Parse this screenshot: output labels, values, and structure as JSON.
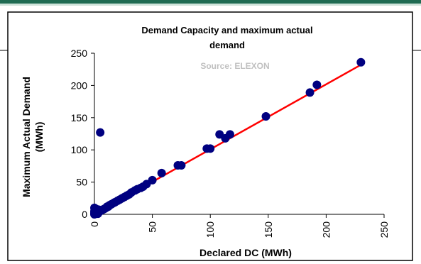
{
  "chart_data": {
    "type": "scatter",
    "title": "Demand Capacity and maximum actual demand",
    "title_lines": [
      "Demand Capacity and maximum actual",
      "demand"
    ],
    "annotation": "Source: ELEXON",
    "xlabel": "Declared DC (MWh)",
    "ylabel": "Maximum Actual Demand (MWh)",
    "ylabel_lines": [
      "Maximum Actual Demand",
      "(MWh)"
    ],
    "xlim": [
      0,
      250
    ],
    "ylim": [
      0,
      250
    ],
    "x_ticks": [
      0,
      50,
      100,
      150,
      200,
      250
    ],
    "y_ticks": [
      0,
      50,
      100,
      150,
      200,
      250
    ],
    "grid": false,
    "legend": "none",
    "colors": {
      "points": "#000080",
      "trendline": "#ff0000",
      "annotation": "#c0c0c0",
      "frame": "#000000",
      "top_band": "#1f6b52"
    },
    "points": [
      {
        "x": 0,
        "y": 0
      },
      {
        "x": 0,
        "y": 2
      },
      {
        "x": 0,
        "y": 5
      },
      {
        "x": 0,
        "y": 10
      },
      {
        "x": 1,
        "y": 1
      },
      {
        "x": 1,
        "y": 3
      },
      {
        "x": 2,
        "y": 2
      },
      {
        "x": 2,
        "y": 8
      },
      {
        "x": 3,
        "y": 3
      },
      {
        "x": 3,
        "y": 1
      },
      {
        "x": 4,
        "y": 4
      },
      {
        "x": 4,
        "y": 7
      },
      {
        "x": 5,
        "y": 5
      },
      {
        "x": 5,
        "y": 127
      },
      {
        "x": 6,
        "y": 6
      },
      {
        "x": 7,
        "y": 7
      },
      {
        "x": 8,
        "y": 8
      },
      {
        "x": 9,
        "y": 9
      },
      {
        "x": 10,
        "y": 10
      },
      {
        "x": 11,
        "y": 12
      },
      {
        "x": 12,
        "y": 12
      },
      {
        "x": 13,
        "y": 14
      },
      {
        "x": 14,
        "y": 15
      },
      {
        "x": 15,
        "y": 16
      },
      {
        "x": 17,
        "y": 18
      },
      {
        "x": 18,
        "y": 19
      },
      {
        "x": 20,
        "y": 21
      },
      {
        "x": 22,
        "y": 23
      },
      {
        "x": 24,
        "y": 25
      },
      {
        "x": 26,
        "y": 27
      },
      {
        "x": 28,
        "y": 29
      },
      {
        "x": 30,
        "y": 31
      },
      {
        "x": 32,
        "y": 34
      },
      {
        "x": 35,
        "y": 37
      },
      {
        "x": 37,
        "y": 39
      },
      {
        "x": 40,
        "y": 41
      },
      {
        "x": 42,
        "y": 43
      },
      {
        "x": 45,
        "y": 47
      },
      {
        "x": 50,
        "y": 53
      },
      {
        "x": 58,
        "y": 64
      },
      {
        "x": 72,
        "y": 76
      },
      {
        "x": 75,
        "y": 76
      },
      {
        "x": 97,
        "y": 102
      },
      {
        "x": 100,
        "y": 102
      },
      {
        "x": 108,
        "y": 124
      },
      {
        "x": 113,
        "y": 118
      },
      {
        "x": 117,
        "y": 124
      },
      {
        "x": 148,
        "y": 152
      },
      {
        "x": 186,
        "y": 189
      },
      {
        "x": 192,
        "y": 201
      },
      {
        "x": 230,
        "y": 236
      }
    ],
    "trendline": {
      "x": [
        0,
        230
      ],
      "y": [
        0,
        232
      ]
    }
  }
}
